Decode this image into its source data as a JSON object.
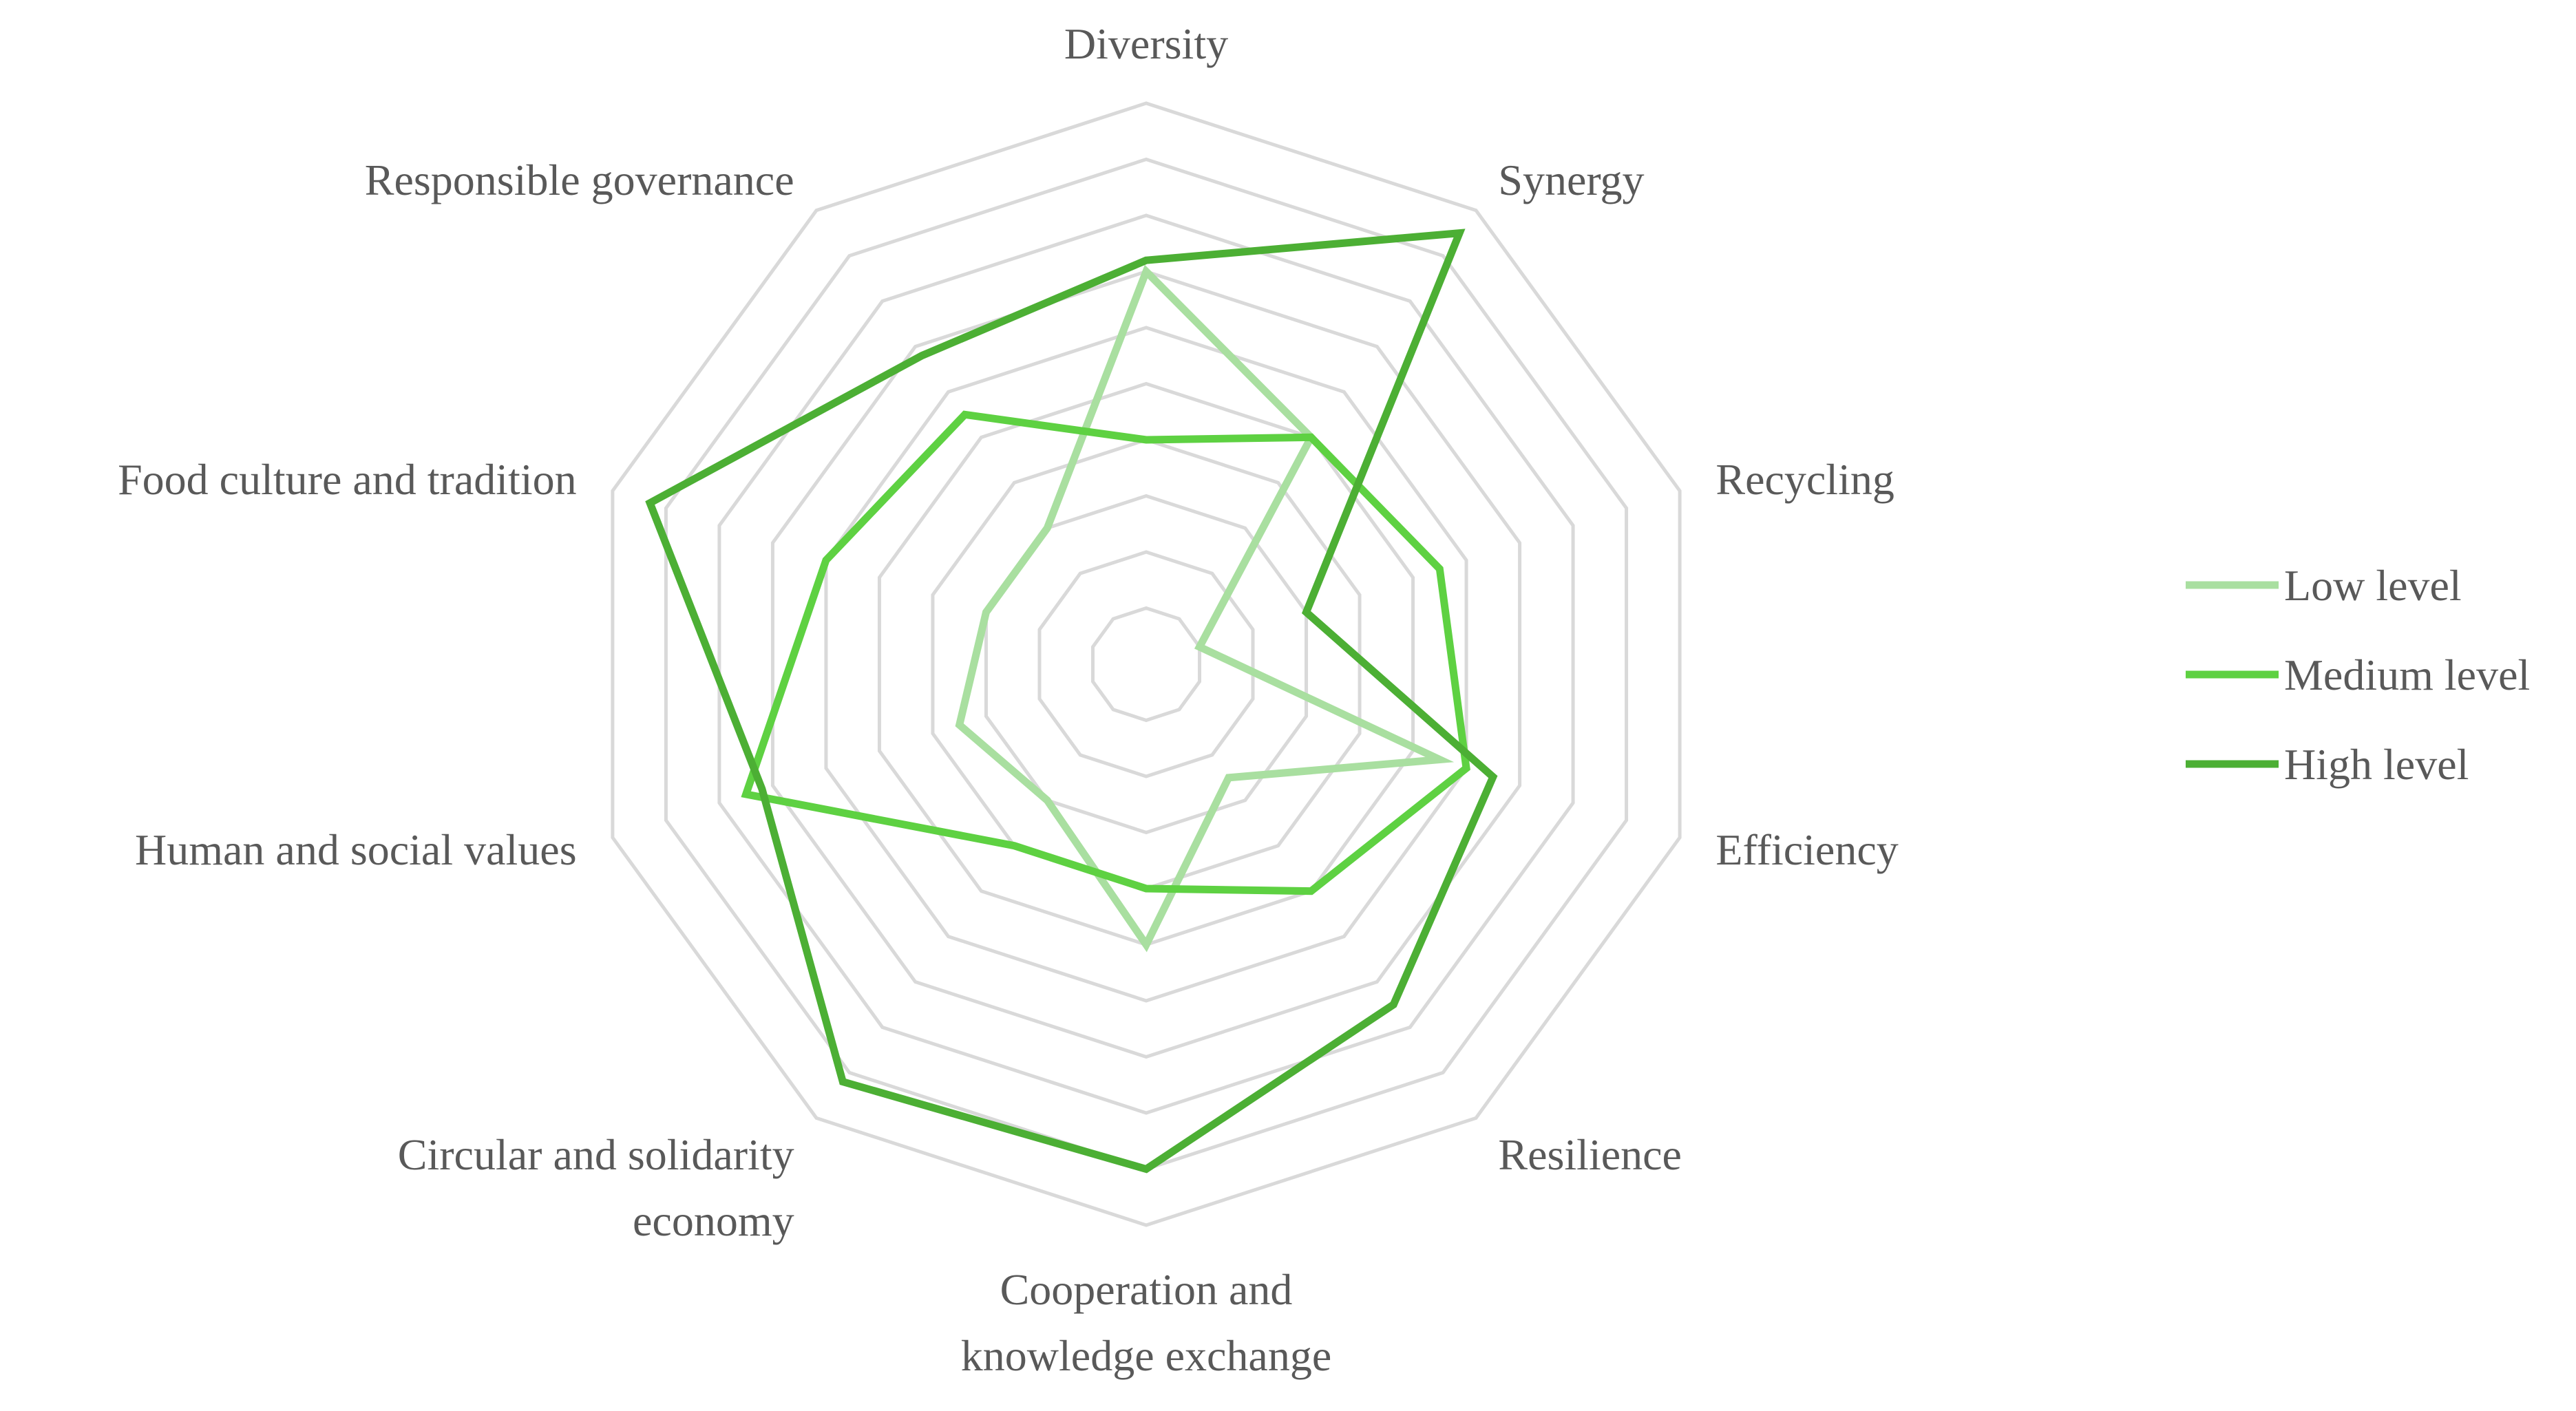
{
  "chart_data": {
    "type": "radar",
    "axes": [
      [
        "Diversity"
      ],
      [
        "Synergy"
      ],
      [
        "Recycling"
      ],
      [
        "Efficiency"
      ],
      [
        "Resilience"
      ],
      [
        "Cooperation and",
        "knowledge exchange"
      ],
      [
        "Circular and solidarity",
        "economy"
      ],
      [
        "Human and social values"
      ],
      [
        "Food culture and tradition"
      ],
      [
        "Responsible governance"
      ]
    ],
    "rlim": [
      0,
      10
    ],
    "grid_levels": [
      1,
      2,
      3,
      4,
      5,
      6,
      7,
      8,
      9,
      10
    ],
    "grid": true,
    "legend_position": "right",
    "series": [
      {
        "name": "Low level",
        "color": "#a9dfa0",
        "values": [
          7.0,
          5.0,
          1.0,
          5.5,
          2.5,
          5.0,
          3.0,
          3.5,
          3.0,
          3.0
        ]
      },
      {
        "name": "Medium level",
        "color": "#5ed142",
        "values": [
          4.0,
          5.0,
          5.5,
          6.0,
          5.0,
          4.0,
          4.0,
          7.5,
          6.0,
          5.5
        ]
      },
      {
        "name": "High level",
        "color": "#4caf34",
        "values": [
          7.2,
          9.5,
          3.0,
          6.5,
          7.5,
          9.0,
          9.2,
          7.2,
          9.3,
          6.8
        ]
      }
    ]
  }
}
